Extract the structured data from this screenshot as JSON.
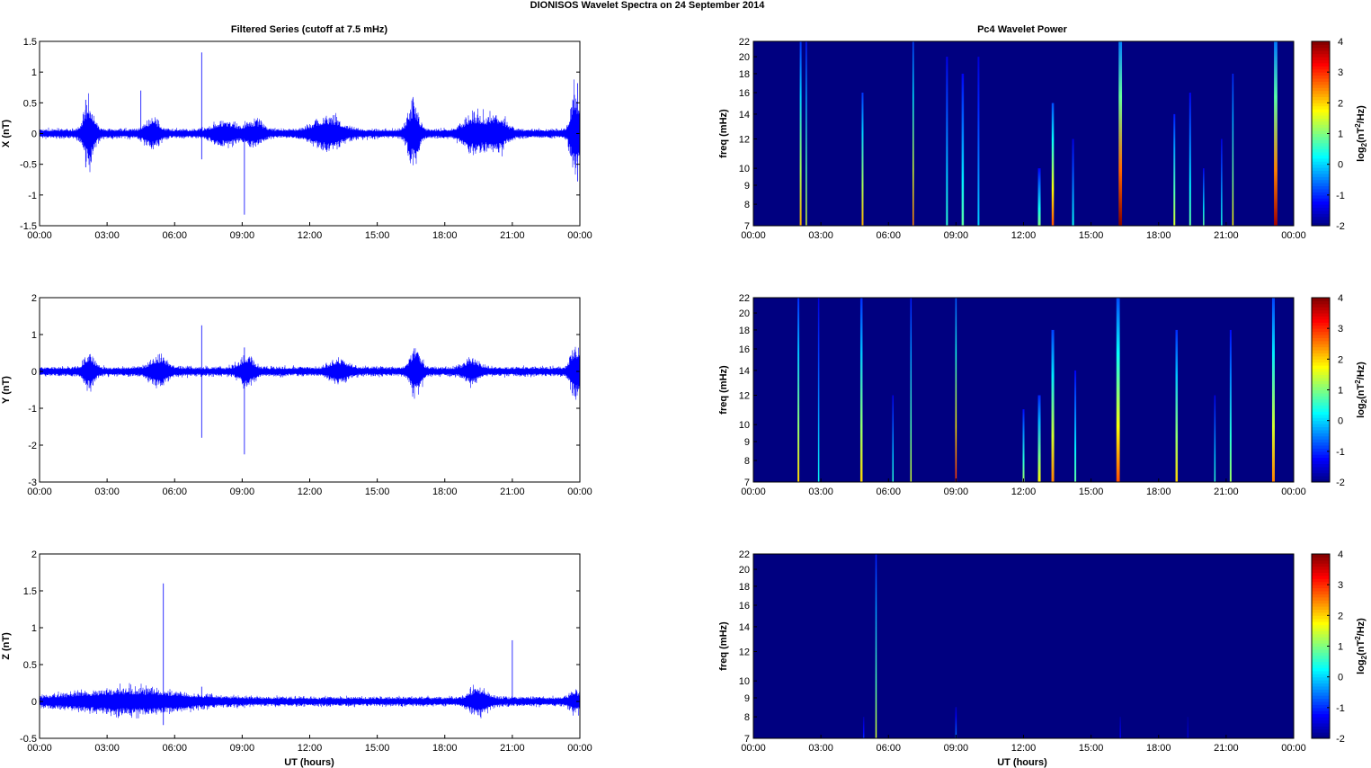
{
  "figure": {
    "title": "DIONISOS Wavelet Spectra on 24 September 2014",
    "left_column_title": "Filtered Series (cutoff at 7.5 mHz)",
    "right_column_title": "Pc4 Wavelet Power",
    "xlabel": "UT (hours)",
    "colors": {
      "trace": "#0000ff",
      "background_heatmap": "#00008f",
      "axes": "#000000"
    }
  },
  "chart_data": [
    {
      "type": "line",
      "panel": "X",
      "ylabel": "X (nT)",
      "xlim": [
        0,
        24
      ],
      "ylim": [
        -1.5,
        1.5
      ],
      "yticks": [
        "-1.5",
        "-1",
        "-0.5",
        "0",
        "0.5",
        "1",
        "1.5"
      ],
      "ytick_values": [
        -1.5,
        -1,
        -0.5,
        0,
        0.5,
        1,
        1.5
      ],
      "xticks": [
        "00:00",
        "03:00",
        "06:00",
        "09:00",
        "12:00",
        "15:00",
        "18:00",
        "21:00",
        "00:00"
      ],
      "xtick_values": [
        0,
        3,
        6,
        9,
        12,
        15,
        18,
        21,
        24
      ],
      "noise_amplitude": 0.06,
      "bursts": [
        {
          "t": 2.2,
          "amp": 0.35,
          "w": 0.3
        },
        {
          "t": 5.0,
          "amp": 0.15,
          "w": 0.4
        },
        {
          "t": 8.2,
          "amp": 0.12,
          "w": 0.6
        },
        {
          "t": 9.5,
          "amp": 0.12,
          "w": 0.5
        },
        {
          "t": 12.8,
          "amp": 0.18,
          "w": 0.8
        },
        {
          "t": 16.6,
          "amp": 0.35,
          "w": 0.3
        },
        {
          "t": 19.3,
          "amp": 0.2,
          "w": 0.6
        },
        {
          "t": 20.3,
          "amp": 0.2,
          "w": 0.5
        },
        {
          "t": 23.8,
          "amp": 0.5,
          "w": 0.25
        }
      ],
      "spikes": [
        {
          "t": 7.2,
          "max": 1.32,
          "min": -0.42
        },
        {
          "t": 9.1,
          "max": 0.08,
          "min": -1.32
        },
        {
          "t": 4.5,
          "max": 0.7,
          "min": -0.1
        },
        {
          "t": 2.05,
          "max": 0.55,
          "min": -0.55
        },
        {
          "t": 23.9,
          "max": 0.82,
          "min": -0.78
        }
      ]
    },
    {
      "type": "line",
      "panel": "Y",
      "ylabel": "Y (nT)",
      "xlim": [
        0,
        24
      ],
      "ylim": [
        -3,
        2
      ],
      "yticks": [
        "-3",
        "-2",
        "-1",
        "0",
        "1",
        "2"
      ],
      "ytick_values": [
        -3,
        -2,
        -1,
        0,
        1,
        2
      ],
      "xticks": [
        "00:00",
        "03:00",
        "06:00",
        "09:00",
        "12:00",
        "15:00",
        "18:00",
        "21:00",
        "00:00"
      ],
      "xtick_values": [
        0,
        3,
        6,
        9,
        12,
        15,
        18,
        21,
        24
      ],
      "noise_amplitude": 0.1,
      "bursts": [
        {
          "t": 2.2,
          "amp": 0.3,
          "w": 0.3
        },
        {
          "t": 5.3,
          "amp": 0.25,
          "w": 0.5
        },
        {
          "t": 9.2,
          "amp": 0.25,
          "w": 0.4
        },
        {
          "t": 13.3,
          "amp": 0.2,
          "w": 0.5
        },
        {
          "t": 16.7,
          "amp": 0.45,
          "w": 0.3
        },
        {
          "t": 19.2,
          "amp": 0.2,
          "w": 0.4
        },
        {
          "t": 23.8,
          "amp": 0.5,
          "w": 0.25
        }
      ],
      "spikes": [
        {
          "t": 7.2,
          "max": 1.25,
          "min": -1.8
        },
        {
          "t": 9.1,
          "max": 0.65,
          "min": -2.25
        },
        {
          "t": 23.9,
          "max": 0.4,
          "min": -0.55
        }
      ]
    },
    {
      "type": "line",
      "panel": "Z",
      "ylabel": "Z (nT)",
      "xlim": [
        0,
        24
      ],
      "ylim": [
        -0.5,
        2
      ],
      "yticks": [
        "-0.5",
        "0",
        "0.5",
        "1",
        "1.5",
        "2"
      ],
      "ytick_values": [
        -0.5,
        0,
        0.5,
        1,
        1.5,
        2
      ],
      "xticks": [
        "00:00",
        "03:00",
        "06:00",
        "09:00",
        "12:00",
        "15:00",
        "18:00",
        "21:00",
        "00:00"
      ],
      "xtick_values": [
        0,
        3,
        6,
        9,
        12,
        15,
        18,
        21,
        24
      ],
      "noise_amplitude": 0.05,
      "bursts": [
        {
          "t": 4.0,
          "amp": 0.1,
          "w": 3.0
        },
        {
          "t": 19.5,
          "amp": 0.12,
          "w": 0.5
        },
        {
          "t": 23.8,
          "amp": 0.08,
          "w": 0.3
        }
      ],
      "spikes": [
        {
          "t": 5.5,
          "max": 1.6,
          "min": -0.32
        },
        {
          "t": 21.0,
          "max": 0.83,
          "min": -0.05
        },
        {
          "t": 7.2,
          "max": 0.2,
          "min": -0.1
        }
      ]
    },
    {
      "type": "heatmap",
      "panel": "Pc4 X",
      "ylabel": "freq (mHz)",
      "colorbar_label": "log2(nT2/Hz)",
      "xlim": [
        0,
        24
      ],
      "ylim": [
        7,
        22
      ],
      "log_y": true,
      "clim": [
        -2,
        4
      ],
      "colorbar_ticks": [
        "-2",
        "-1",
        "0",
        "1",
        "2",
        "3",
        "4"
      ],
      "colorbar_tick_values": [
        -2,
        -1,
        0,
        1,
        2,
        3,
        4
      ],
      "yticks": [
        "7",
        "8",
        "9",
        "10",
        "12",
        "14",
        "16",
        "18",
        "20",
        "22"
      ],
      "ytick_values": [
        7,
        8,
        9,
        10,
        12,
        14,
        16,
        18,
        20,
        22
      ],
      "xticks": [
        "00:00",
        "03:00",
        "06:00",
        "09:00",
        "12:00",
        "15:00",
        "18:00",
        "21:00",
        "00:00"
      ],
      "xtick_values": [
        0,
        3,
        6,
        9,
        12,
        15,
        18,
        21,
        24
      ],
      "background_value": -2,
      "streaks": [
        {
          "t": 2.1,
          "fmax": 22,
          "peak": 2.2,
          "w": 0.08
        },
        {
          "t": 2.35,
          "fmax": 22,
          "peak": 1.5,
          "w": 0.06
        },
        {
          "t": 4.85,
          "fmax": 16,
          "peak": 2.2,
          "w": 0.08
        },
        {
          "t": 7.1,
          "fmax": 22,
          "peak": 2.5,
          "w": 0.03
        },
        {
          "t": 8.6,
          "fmax": 20,
          "peak": 0.5,
          "w": 0.08
        },
        {
          "t": 9.3,
          "fmax": 18,
          "peak": 0.8,
          "w": 0.1
        },
        {
          "t": 10.0,
          "fmax": 20,
          "peak": 0.0,
          "w": 0.08
        },
        {
          "t": 12.7,
          "fmax": 10,
          "peak": 1.0,
          "w": 0.12
        },
        {
          "t": 13.3,
          "fmax": 15,
          "peak": 2.8,
          "w": 0.1
        },
        {
          "t": 14.2,
          "fmax": 12,
          "peak": 0.3,
          "w": 0.08
        },
        {
          "t": 16.3,
          "fmax": 22,
          "peak": 4.0,
          "w": 0.15
        },
        {
          "t": 18.7,
          "fmax": 14,
          "peak": 1.5,
          "w": 0.08
        },
        {
          "t": 19.4,
          "fmax": 16,
          "peak": 0.8,
          "w": 0.08
        },
        {
          "t": 20.0,
          "fmax": 10,
          "peak": 0.8,
          "w": 0.06
        },
        {
          "t": 20.8,
          "fmax": 12,
          "peak": 0.4,
          "w": 0.06
        },
        {
          "t": 21.3,
          "fmax": 18,
          "peak": 1.8,
          "w": 0.05
        },
        {
          "t": 23.2,
          "fmax": 22,
          "peak": 3.8,
          "w": 0.15
        }
      ]
    },
    {
      "type": "heatmap",
      "panel": "Pc4 Y",
      "ylabel": "freq (mHz)",
      "colorbar_label": "log2(nT2/Hz)",
      "xlim": [
        0,
        24
      ],
      "ylim": [
        7,
        22
      ],
      "log_y": true,
      "clim": [
        -2,
        4
      ],
      "colorbar_ticks": [
        "-2",
        "-1",
        "0",
        "1",
        "2",
        "3",
        "4"
      ],
      "colorbar_tick_values": [
        -2,
        -1,
        0,
        1,
        2,
        3,
        4
      ],
      "yticks": [
        "7",
        "8",
        "9",
        "10",
        "12",
        "14",
        "16",
        "18",
        "20",
        "22"
      ],
      "ytick_values": [
        7,
        8,
        9,
        10,
        12,
        14,
        16,
        18,
        20,
        22
      ],
      "xticks": [
        "00:00",
        "03:00",
        "06:00",
        "09:00",
        "12:00",
        "15:00",
        "18:00",
        "21:00",
        "00:00"
      ],
      "xtick_values": [
        0,
        3,
        6,
        9,
        12,
        15,
        18,
        21,
        24
      ],
      "background_value": -2,
      "streaks": [
        {
          "t": 2.0,
          "fmax": 22,
          "peak": 2.0,
          "w": 0.08
        },
        {
          "t": 2.9,
          "fmax": 22,
          "peak": 0.3,
          "w": 0.06
        },
        {
          "t": 4.8,
          "fmax": 22,
          "peak": 2.0,
          "w": 0.1
        },
        {
          "t": 6.2,
          "fmax": 12,
          "peak": 0.5,
          "w": 0.06
        },
        {
          "t": 7.0,
          "fmax": 22,
          "peak": 1.5,
          "w": 0.05
        },
        {
          "t": 9.0,
          "fmax": 22,
          "peak": 3.0,
          "w": 0.05
        },
        {
          "t": 12.0,
          "fmax": 11,
          "peak": 1.2,
          "w": 0.08
        },
        {
          "t": 12.7,
          "fmax": 12,
          "peak": 1.8,
          "w": 0.12
        },
        {
          "t": 13.3,
          "fmax": 18,
          "peak": 2.5,
          "w": 0.12
        },
        {
          "t": 14.3,
          "fmax": 14,
          "peak": 0.8,
          "w": 0.08
        },
        {
          "t": 16.2,
          "fmax": 22,
          "peak": 2.8,
          "w": 0.15
        },
        {
          "t": 18.8,
          "fmax": 18,
          "peak": 2.0,
          "w": 0.1
        },
        {
          "t": 20.5,
          "fmax": 12,
          "peak": 0.5,
          "w": 0.06
        },
        {
          "t": 21.2,
          "fmax": 18,
          "peak": 1.2,
          "w": 0.08
        },
        {
          "t": 23.1,
          "fmax": 22,
          "peak": 2.5,
          "w": 0.12
        }
      ]
    },
    {
      "type": "heatmap",
      "panel": "Pc4 Z",
      "ylabel": "freq (mHz)",
      "colorbar_label": "log2(nT2/Hz)",
      "xlim": [
        0,
        24
      ],
      "ylim": [
        7,
        22
      ],
      "log_y": true,
      "clim": [
        -2,
        4
      ],
      "colorbar_ticks": [
        "-2",
        "-1",
        "0",
        "1",
        "2",
        "3",
        "4"
      ],
      "colorbar_tick_values": [
        -2,
        -1,
        0,
        1,
        2,
        3,
        4
      ],
      "yticks": [
        "7",
        "8",
        "9",
        "10",
        "12",
        "14",
        "16",
        "18",
        "20",
        "22"
      ],
      "ytick_values": [
        7,
        8,
        9,
        10,
        12,
        14,
        16,
        18,
        20,
        22
      ],
      "xticks": [
        "00:00",
        "03:00",
        "06:00",
        "09:00",
        "12:00",
        "15:00",
        "18:00",
        "21:00",
        "00:00"
      ],
      "xtick_values": [
        0,
        3,
        6,
        9,
        12,
        15,
        18,
        21,
        24
      ],
      "background_value": -2,
      "streaks": [
        {
          "t": 5.45,
          "fmax": 22,
          "peak": 1.5,
          "w": 0.04
        },
        {
          "t": 4.9,
          "fmax": 8,
          "peak": -1.0,
          "w": 0.05
        },
        {
          "t": 9.0,
          "fmax": 8.5,
          "peak": -0.5,
          "w": 0.05
        },
        {
          "t": 16.3,
          "fmax": 8,
          "peak": -1.3,
          "w": 0.05
        },
        {
          "t": 19.3,
          "fmax": 8,
          "peak": -1.5,
          "w": 0.05
        }
      ]
    }
  ]
}
